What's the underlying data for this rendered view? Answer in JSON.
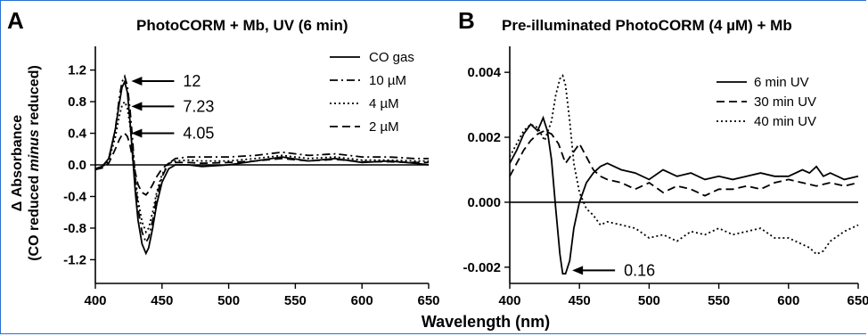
{
  "chart_data": [
    {
      "id": "A",
      "type": "line",
      "panel_letter": "A",
      "title": "PhotoCORM + Mb, UV (6 min)",
      "xlabel": "Wavelength (nm)",
      "ylabel_line1": "Δ Absorbance",
      "ylabel_line2_pre": "(CO reduced ",
      "ylabel_line2_italic": "minus",
      "ylabel_line2_post": " reduced)",
      "xlim": [
        400,
        650
      ],
      "ylim": [
        -1.5,
        1.5
      ],
      "xticks": [
        400,
        450,
        500,
        550,
        600,
        650
      ],
      "xtick_labels": [
        "400",
        "450",
        "500",
        "550",
        "600",
        "650"
      ],
      "yticks": [
        1.2,
        0.8,
        0.4,
        0.0,
        -0.4,
        -0.8,
        -1.2
      ],
      "ytick_labels": [
        "1.2",
        "0.8",
        "0.4",
        "0.0",
        "-0.4",
        "-0.8",
        "-1.2"
      ],
      "zero_line": true,
      "legend_position": "top-right",
      "series": [
        {
          "name": "CO gas",
          "dash": "solid",
          "x": [
            400,
            405,
            410,
            415,
            418,
            420,
            422,
            424,
            426,
            428,
            430,
            432,
            435,
            438,
            440,
            443,
            446,
            450,
            455,
            460,
            470,
            480,
            500,
            520,
            540,
            560,
            580,
            600,
            620,
            640,
            650
          ],
          "y": [
            -0.05,
            -0.02,
            0.08,
            0.45,
            0.78,
            0.98,
            1.05,
            0.92,
            0.55,
            0.1,
            -0.35,
            -0.7,
            -1.0,
            -1.12,
            -1.05,
            -0.8,
            -0.5,
            -0.22,
            -0.05,
            0.0,
            0.0,
            -0.02,
            0.0,
            0.05,
            0.1,
            0.05,
            0.08,
            0.03,
            0.05,
            0.02,
            0.0
          ]
        },
        {
          "name": "10 µM",
          "dash": "dashdot",
          "x": [
            400,
            405,
            410,
            415,
            418,
            420,
            422,
            424,
            426,
            428,
            430,
            432,
            435,
            438,
            440,
            443,
            446,
            450,
            455,
            460,
            470,
            480,
            500,
            520,
            540,
            560,
            580,
            600,
            620,
            640,
            650
          ],
          "y": [
            -0.05,
            -0.02,
            0.06,
            0.45,
            0.85,
            1.05,
            1.12,
            1.0,
            0.7,
            0.3,
            -0.2,
            -0.55,
            -0.85,
            -0.98,
            -0.92,
            -0.7,
            -0.4,
            -0.15,
            0.02,
            0.08,
            0.1,
            0.1,
            0.1,
            0.12,
            0.16,
            0.12,
            0.14,
            0.1,
            0.1,
            0.08,
            0.08
          ]
        },
        {
          "name": "4 µM",
          "dash": "dotted",
          "x": [
            400,
            405,
            410,
            415,
            418,
            420,
            422,
            424,
            426,
            428,
            430,
            432,
            435,
            438,
            440,
            443,
            446,
            450,
            455,
            460,
            470,
            480,
            500,
            520,
            540,
            560,
            580,
            600,
            620,
            640,
            650
          ],
          "y": [
            -0.06,
            -0.03,
            0.05,
            0.35,
            0.62,
            0.75,
            0.8,
            0.72,
            0.5,
            0.2,
            -0.15,
            -0.45,
            -0.72,
            -0.85,
            -0.8,
            -0.6,
            -0.35,
            -0.12,
            0.02,
            0.05,
            0.06,
            0.05,
            0.05,
            0.08,
            0.12,
            0.08,
            0.1,
            0.06,
            0.06,
            0.05,
            0.05
          ]
        },
        {
          "name": "2 µM",
          "dash": "dashed",
          "x": [
            400,
            405,
            410,
            415,
            418,
            420,
            422,
            424,
            426,
            428,
            430,
            432,
            435,
            438,
            440,
            443,
            446,
            450,
            455,
            460,
            470,
            480,
            500,
            520,
            540,
            560,
            580,
            600,
            620,
            640,
            650
          ],
          "y": [
            -0.06,
            -0.04,
            0.02,
            0.2,
            0.32,
            0.38,
            0.4,
            0.36,
            0.25,
            0.08,
            -0.1,
            -0.25,
            -0.35,
            -0.38,
            -0.34,
            -0.25,
            -0.15,
            -0.05,
            0.02,
            0.03,
            0.03,
            0.02,
            0.03,
            0.05,
            0.08,
            0.05,
            0.07,
            0.04,
            0.04,
            0.03,
            0.03
          ]
        }
      ],
      "annotations": [
        {
          "text": "12",
          "arrow_tip": [
            423,
            1.06
          ]
        },
        {
          "text": "7.23",
          "arrow_tip": [
            423,
            0.74
          ]
        },
        {
          "text": "4.05",
          "arrow_tip": [
            423,
            0.4
          ]
        }
      ]
    },
    {
      "id": "B",
      "type": "line",
      "panel_letter": "B",
      "title": "Pre-illuminated PhotoCORM (4 µM) + Mb",
      "xlabel": "Wavelength (nm)",
      "xlim": [
        400,
        650
      ],
      "ylim": [
        -0.0025,
        0.0048
      ],
      "xticks": [
        400,
        450,
        500,
        550,
        600,
        650
      ],
      "xtick_labels": [
        "400",
        "450",
        "500",
        "550",
        "600",
        "650"
      ],
      "yticks": [
        0.004,
        0.002,
        0.0,
        -0.002
      ],
      "ytick_labels": [
        "0.004",
        "0.002",
        "0.000",
        "-0.002"
      ],
      "zero_line": true,
      "legend_position": "top-right",
      "series": [
        {
          "name": "6 min UV",
          "dash": "solid",
          "x": [
            400,
            405,
            410,
            415,
            420,
            424,
            427,
            430,
            433,
            436,
            438,
            440,
            443,
            446,
            450,
            455,
            460,
            465,
            470,
            480,
            490,
            500,
            510,
            520,
            530,
            540,
            550,
            560,
            570,
            580,
            590,
            600,
            610,
            615,
            620,
            625,
            630,
            640,
            650
          ],
          "y": [
            0.0012,
            0.0016,
            0.0021,
            0.0024,
            0.0022,
            0.0026,
            0.0022,
            0.0013,
            -0.0002,
            -0.0016,
            -0.0022,
            -0.0022,
            -0.0018,
            -0.0008,
            0.0,
            0.0006,
            0.0009,
            0.0011,
            0.0012,
            0.001,
            0.0009,
            0.0007,
            0.001,
            0.0008,
            0.0009,
            0.0007,
            0.0008,
            0.0007,
            0.0008,
            0.0009,
            0.0008,
            0.0008,
            0.001,
            0.0009,
            0.0011,
            0.0008,
            0.0009,
            0.0007,
            0.0008
          ]
        },
        {
          "name": "30 min UV",
          "dash": "dashed",
          "x": [
            400,
            405,
            410,
            415,
            420,
            425,
            430,
            435,
            440,
            445,
            450,
            455,
            460,
            465,
            470,
            480,
            490,
            500,
            510,
            520,
            530,
            540,
            550,
            560,
            570,
            580,
            590,
            600,
            610,
            620,
            630,
            640,
            650
          ],
          "y": [
            0.0008,
            0.0012,
            0.0016,
            0.0019,
            0.0021,
            0.0022,
            0.0021,
            0.0018,
            0.0012,
            0.0015,
            0.0018,
            0.0014,
            0.001,
            0.0008,
            0.0007,
            0.0006,
            0.0004,
            0.0006,
            0.0003,
            0.0005,
            0.0004,
            0.0002,
            0.0004,
            0.0004,
            0.0005,
            0.0004,
            0.0006,
            0.0007,
            0.0006,
            0.0005,
            0.0006,
            0.0005,
            0.0006
          ]
        },
        {
          "name": "40 min UV",
          "dash": "dotted",
          "x": [
            400,
            405,
            410,
            415,
            420,
            425,
            430,
            433,
            436,
            438,
            440,
            443,
            446,
            450,
            455,
            460,
            465,
            470,
            480,
            490,
            500,
            510,
            520,
            530,
            540,
            550,
            560,
            570,
            580,
            590,
            600,
            610,
            615,
            620,
            625,
            630,
            640,
            650
          ],
          "y": [
            0.0014,
            0.0018,
            0.0022,
            0.0024,
            0.0023,
            0.0019,
            0.0025,
            0.0033,
            0.0038,
            0.0039,
            0.0036,
            0.0025,
            0.0012,
            0.0003,
            -0.0002,
            -0.0004,
            -0.0007,
            -0.0006,
            -0.0007,
            -0.0008,
            -0.0011,
            -0.001,
            -0.0012,
            -0.0009,
            -0.001,
            -0.0008,
            -0.001,
            -0.0009,
            -0.0008,
            -0.0011,
            -0.0011,
            -0.0013,
            -0.0014,
            -0.0016,
            -0.0015,
            -0.0012,
            -0.0009,
            -0.0007
          ]
        }
      ],
      "annotations": [
        {
          "text": "0.16",
          "arrow_tip": [
            441,
            -0.0021
          ]
        }
      ]
    }
  ]
}
